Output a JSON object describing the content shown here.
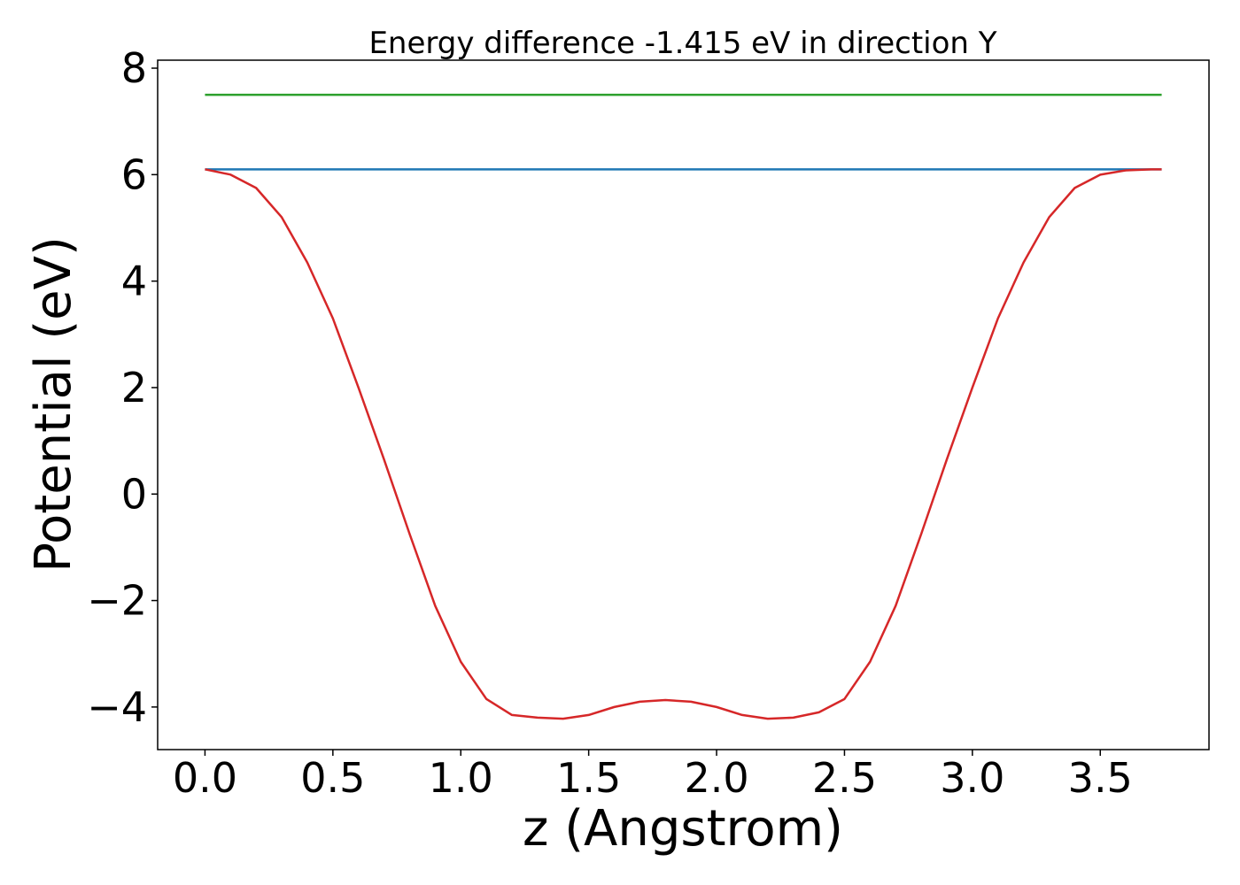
{
  "chart_data": {
    "type": "line",
    "title": "Energy difference -1.415 eV in direction Y",
    "xlabel": "z (Angstrom)",
    "ylabel": "Potential (eV)",
    "xlim": [
      -0.185,
      3.925
    ],
    "ylim": [
      -4.8,
      8.15
    ],
    "xticks": [
      0.0,
      0.5,
      1.0,
      1.5,
      2.0,
      2.5,
      3.0,
      3.5
    ],
    "xtick_labels": [
      "0.0",
      "0.5",
      "1.0",
      "1.5",
      "2.0",
      "2.5",
      "3.0",
      "3.5"
    ],
    "yticks": [
      -4,
      -2,
      0,
      2,
      4,
      6,
      8
    ],
    "ytick_labels": [
      "−4",
      "−2",
      "0",
      "2",
      "4",
      "6",
      "8"
    ],
    "grid": false,
    "series": [
      {
        "color": "#2ca02c",
        "x": [
          0.0,
          3.74
        ],
        "y": [
          7.5,
          7.5
        ]
      },
      {
        "color": "#1f77b4",
        "x": [
          0.0,
          3.74
        ],
        "y": [
          6.1,
          6.1
        ]
      },
      {
        "color": "#d62728",
        "x": [
          0.0,
          0.1,
          0.2,
          0.3,
          0.4,
          0.5,
          0.6,
          0.7,
          0.8,
          0.9,
          1.0,
          1.1,
          1.2,
          1.3,
          1.4,
          1.5,
          1.6,
          1.7,
          1.8,
          1.9,
          2.0,
          2.1,
          2.2,
          2.3,
          2.4,
          2.5,
          2.6,
          2.7,
          2.8,
          2.9,
          3.0,
          3.1,
          3.2,
          3.3,
          3.4,
          3.5,
          3.6,
          3.7,
          3.74
        ],
        "y": [
          6.1,
          6.0,
          5.75,
          5.2,
          4.35,
          3.3,
          2.0,
          0.65,
          -0.75,
          -2.1,
          -3.15,
          -3.85,
          -4.15,
          -4.2,
          -4.22,
          -4.15,
          -4.0,
          -3.9,
          -3.87,
          -3.9,
          -4.0,
          -4.15,
          -4.22,
          -4.2,
          -4.1,
          -3.85,
          -3.15,
          -2.1,
          -0.75,
          0.65,
          2.0,
          3.3,
          4.35,
          5.2,
          5.75,
          6.0,
          6.08,
          6.1,
          6.1
        ]
      }
    ]
  }
}
